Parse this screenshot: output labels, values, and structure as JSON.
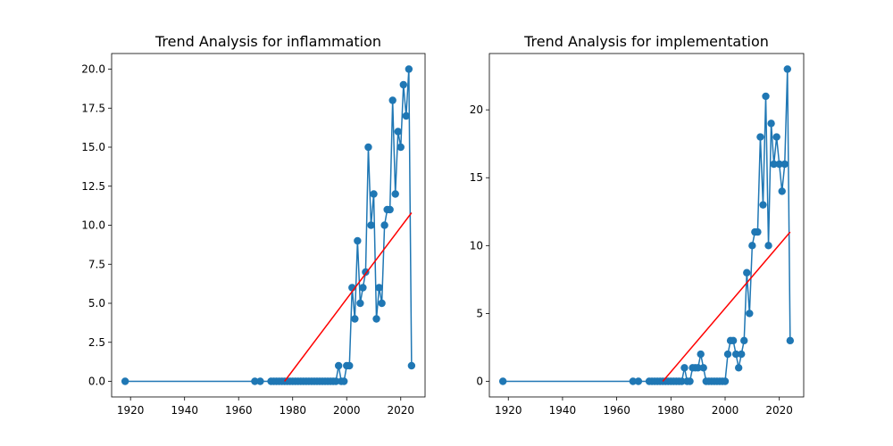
{
  "chart_data": [
    {
      "type": "line",
      "title": "Trend Analysis for inflammation",
      "xlabel": "",
      "ylabel": "",
      "xlim": [
        1913,
        2029
      ],
      "ylim": [
        -1.0,
        21.0
      ],
      "x_ticks": [
        1920,
        1940,
        1960,
        1980,
        2000,
        2020
      ],
      "y_ticks": [
        0.0,
        2.5,
        5.0,
        7.5,
        10.0,
        12.5,
        15.0,
        17.5,
        20.0
      ],
      "y_tick_labels": [
        "0.0",
        "2.5",
        "5.0",
        "7.5",
        "10.0",
        "12.5",
        "15.0",
        "17.5",
        "20.0"
      ],
      "grid": false,
      "series": [
        {
          "color": "#1f77b4",
          "marker": "circle",
          "points": [
            [
              1918,
              0
            ],
            [
              1966,
              0
            ],
            [
              1968,
              0
            ],
            [
              1972,
              0
            ],
            [
              1973,
              0
            ],
            [
              1974,
              0
            ],
            [
              1975,
              0
            ],
            [
              1976,
              0
            ],
            [
              1977,
              0
            ],
            [
              1978,
              0
            ],
            [
              1979,
              0
            ],
            [
              1980,
              0
            ],
            [
              1981,
              0
            ],
            [
              1982,
              0
            ],
            [
              1983,
              0
            ],
            [
              1984,
              0
            ],
            [
              1985,
              0
            ],
            [
              1986,
              0
            ],
            [
              1987,
              0
            ],
            [
              1988,
              0
            ],
            [
              1989,
              0
            ],
            [
              1990,
              0
            ],
            [
              1991,
              0
            ],
            [
              1992,
              0
            ],
            [
              1993,
              0
            ],
            [
              1994,
              0
            ],
            [
              1995,
              0
            ],
            [
              1996,
              0
            ],
            [
              1997,
              1
            ],
            [
              1998,
              0
            ],
            [
              1999,
              0
            ],
            [
              2000,
              1
            ],
            [
              2001,
              1
            ],
            [
              2002,
              6
            ],
            [
              2003,
              4
            ],
            [
              2004,
              9
            ],
            [
              2005,
              5
            ],
            [
              2006,
              6
            ],
            [
              2007,
              7
            ],
            [
              2008,
              15
            ],
            [
              2009,
              10
            ],
            [
              2010,
              12
            ],
            [
              2011,
              4
            ],
            [
              2012,
              6
            ],
            [
              2013,
              5
            ],
            [
              2014,
              10
            ],
            [
              2015,
              11
            ],
            [
              2016,
              11
            ],
            [
              2017,
              18
            ],
            [
              2018,
              12
            ],
            [
              2019,
              16
            ],
            [
              2020,
              15
            ],
            [
              2021,
              19
            ],
            [
              2022,
              17
            ],
            [
              2023,
              20
            ],
            [
              2024,
              1
            ]
          ]
        }
      ],
      "trendline": {
        "color": "#ff0000",
        "x": [
          1977,
          2024
        ],
        "y": [
          0.0,
          10.8
        ]
      }
    },
    {
      "type": "line",
      "title": "Trend Analysis for implementation",
      "xlabel": "",
      "ylabel": "",
      "xlim": [
        1913,
        2029
      ],
      "ylim": [
        -1.15,
        24.15
      ],
      "x_ticks": [
        1920,
        1940,
        1960,
        1980,
        2000,
        2020
      ],
      "y_ticks": [
        0,
        5,
        10,
        15,
        20
      ],
      "y_tick_labels": [
        "0",
        "5",
        "10",
        "15",
        "20"
      ],
      "grid": false,
      "series": [
        {
          "color": "#1f77b4",
          "marker": "circle",
          "points": [
            [
              1918,
              0
            ],
            [
              1966,
              0
            ],
            [
              1968,
              0
            ],
            [
              1972,
              0
            ],
            [
              1973,
              0
            ],
            [
              1974,
              0
            ],
            [
              1975,
              0
            ],
            [
              1976,
              0
            ],
            [
              1977,
              0
            ],
            [
              1978,
              0
            ],
            [
              1979,
              0
            ],
            [
              1980,
              0
            ],
            [
              1981,
              0
            ],
            [
              1982,
              0
            ],
            [
              1983,
              0
            ],
            [
              1984,
              0
            ],
            [
              1985,
              1
            ],
            [
              1986,
              0
            ],
            [
              1987,
              0
            ],
            [
              1988,
              1
            ],
            [
              1989,
              1
            ],
            [
              1990,
              1
            ],
            [
              1991,
              2
            ],
            [
              1992,
              1
            ],
            [
              1993,
              0
            ],
            [
              1994,
              0
            ],
            [
              1995,
              0
            ],
            [
              1996,
              0
            ],
            [
              1997,
              0
            ],
            [
              1998,
              0
            ],
            [
              1999,
              0
            ],
            [
              2000,
              0
            ],
            [
              2001,
              2
            ],
            [
              2002,
              3
            ],
            [
              2003,
              3
            ],
            [
              2004,
              2
            ],
            [
              2005,
              1
            ],
            [
              2006,
              2
            ],
            [
              2007,
              3
            ],
            [
              2008,
              8
            ],
            [
              2009,
              5
            ],
            [
              2010,
              10
            ],
            [
              2011,
              11
            ],
            [
              2012,
              11
            ],
            [
              2013,
              18
            ],
            [
              2014,
              13
            ],
            [
              2015,
              21
            ],
            [
              2016,
              10
            ],
            [
              2017,
              19
            ],
            [
              2018,
              16
            ],
            [
              2019,
              18
            ],
            [
              2020,
              16
            ],
            [
              2021,
              14
            ],
            [
              2022,
              16
            ],
            [
              2023,
              23
            ],
            [
              2024,
              3
            ]
          ]
        }
      ],
      "trendline": {
        "color": "#ff0000",
        "x": [
          1977,
          2024
        ],
        "y": [
          0.0,
          11.0
        ]
      }
    }
  ]
}
